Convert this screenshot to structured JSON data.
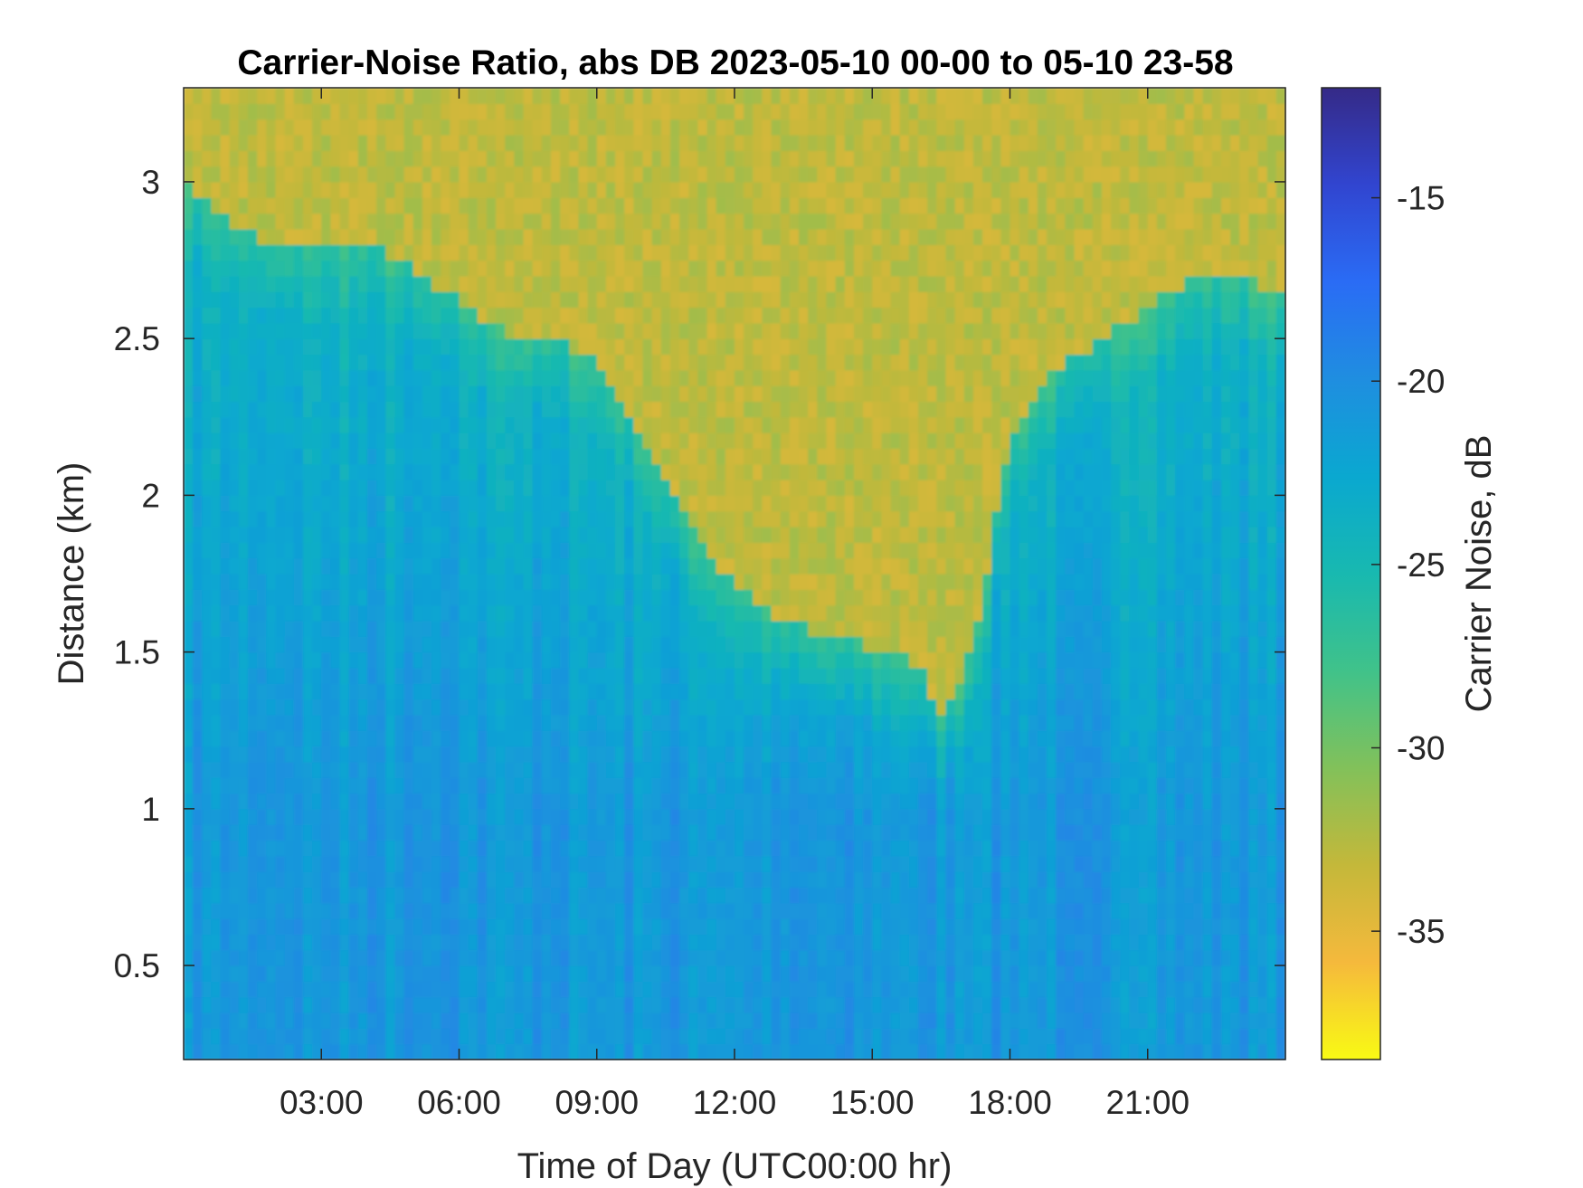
{
  "chart_data": {
    "type": "heatmap",
    "title": "Carrier-Noise Ratio, abs DB 2023-05-10 00-00 to 05-10 23-58",
    "xlabel": "Time of Day (UTC00:00 hr)",
    "ylabel": "Distance (km)",
    "x_unit": "hours",
    "xlim": [
      0,
      24
    ],
    "ylim": [
      0.2,
      3.3
    ],
    "x_ticks": [
      {
        "value": 3,
        "label": "03:00"
      },
      {
        "value": 6,
        "label": "06:00"
      },
      {
        "value": 9,
        "label": "09:00"
      },
      {
        "value": 12,
        "label": "12:00"
      },
      {
        "value": 15,
        "label": "15:00"
      },
      {
        "value": 18,
        "label": "18:00"
      },
      {
        "value": 21,
        "label": "21:00"
      }
    ],
    "y_ticks": [
      {
        "value": 0.5,
        "label": "0.5"
      },
      {
        "value": 1,
        "label": "1"
      },
      {
        "value": 1.5,
        "label": "1.5"
      },
      {
        "value": 2,
        "label": "2"
      },
      {
        "value": 2.5,
        "label": "2.5"
      },
      {
        "value": 3,
        "label": "3"
      }
    ],
    "colorbar": {
      "label": "Carrier Noise, dB",
      "range": [
        -38.5,
        -12
      ],
      "ticks": [
        {
          "value": -15,
          "label": "-15"
        },
        {
          "value": -20,
          "label": "-20"
        },
        {
          "value": -25,
          "label": "-25"
        },
        {
          "value": -30,
          "label": "-30"
        },
        {
          "value": -35,
          "label": "-35"
        }
      ],
      "colormap": "parula-reversed",
      "colors": [
        "#352a87",
        "#3145d0",
        "#2a6cf5",
        "#1f8ee0",
        "#0aa8d0",
        "#18b9b0",
        "#40c28a",
        "#82c15a",
        "#c4b83a",
        "#f5b93c",
        "#f9fa14"
      ]
    },
    "grid": false,
    "noise_floor_boundary_km": [
      {
        "hour": 0,
        "km": 3.0
      },
      {
        "hour": 1,
        "km": 2.88
      },
      {
        "hour": 2,
        "km": 2.8
      },
      {
        "hour": 3,
        "km": 2.8
      },
      {
        "hour": 4,
        "km": 2.8
      },
      {
        "hour": 5,
        "km": 2.72
      },
      {
        "hour": 6,
        "km": 2.62
      },
      {
        "hour": 7,
        "km": 2.52
      },
      {
        "hour": 8,
        "km": 2.5
      },
      {
        "hour": 9,
        "km": 2.42
      },
      {
        "hour": 10,
        "km": 2.2
      },
      {
        "hour": 11,
        "km": 1.9
      },
      {
        "hour": 12,
        "km": 1.72
      },
      {
        "hour": 13,
        "km": 1.6
      },
      {
        "hour": 14,
        "km": 1.56
      },
      {
        "hour": 15,
        "km": 1.52
      },
      {
        "hour": 16,
        "km": 1.46
      },
      {
        "hour": 16.5,
        "km": 1.3
      },
      {
        "hour": 17,
        "km": 1.42
      },
      {
        "hour": 17.5,
        "km": 1.75
      },
      {
        "hour": 18,
        "km": 2.2
      },
      {
        "hour": 19,
        "km": 2.4
      },
      {
        "hour": 20,
        "km": 2.5
      },
      {
        "hour": 21,
        "km": 2.6
      },
      {
        "hour": 22,
        "km": 2.7
      },
      {
        "hour": 23,
        "km": 2.7
      },
      {
        "hour": 24,
        "km": 2.62
      }
    ],
    "typical_values_db": {
      "near_range_below_1km": -21,
      "mid_range_1_to_2km": -23,
      "above_noise_floor": -33
    }
  }
}
